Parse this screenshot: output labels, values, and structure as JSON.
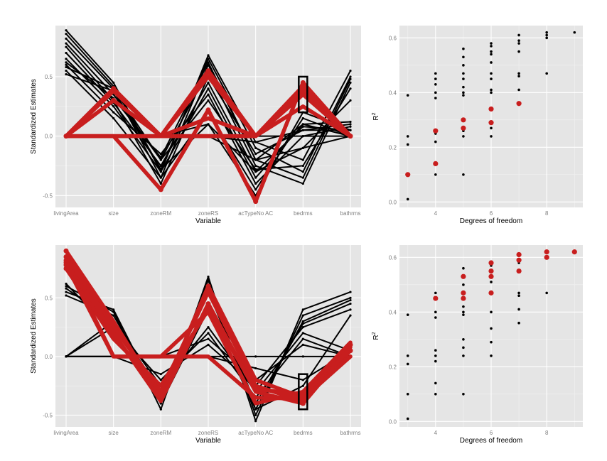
{
  "colors": {
    "panel_bg": "#e5e5e5",
    "grid_major": "#ffffff",
    "grid_minor": "#f2f2f2",
    "line_black": "#000000",
    "highlight_red": "#c81e1e",
    "tick_text": "#7f7f7f"
  },
  "chart_data": [
    {
      "type": "line",
      "id": "pc-top",
      "xlabel": "Variable",
      "ylabel": "Standardized Estimates",
      "categories": [
        "livingArea",
        "size",
        "zoneRM",
        "zoneRS",
        "acTypeNo AC",
        "bedrms",
        "bathrms"
      ],
      "yticks": [
        -0.5,
        0.0,
        0.5
      ],
      "ytick_labels": [
        "-0.5",
        "0.0",
        "0.5"
      ],
      "ylim": [
        -0.6,
        0.93
      ],
      "grid": true,
      "highlight_box": {
        "category": "bedrms",
        "ymin": 0.2,
        "ymax": 0.5
      },
      "series_black": [
        [
          0.89,
          0.45,
          -0.3,
          0.68,
          -0.05,
          -0.2,
          0.55
        ],
        [
          0.86,
          0.42,
          -0.28,
          0.65,
          -0.1,
          -0.3,
          0.5
        ],
        [
          0.82,
          0.4,
          -0.35,
          0.6,
          -0.2,
          -0.35,
          0.48
        ],
        [
          0.78,
          0.35,
          -0.2,
          0.55,
          -0.25,
          -0.4,
          0.45
        ],
        [
          0.75,
          0.3,
          -0.4,
          0.5,
          -0.15,
          0.05,
          0.1
        ],
        [
          0.7,
          0.28,
          -0.25,
          0.45,
          -0.3,
          0.08,
          0.05
        ],
        [
          0.65,
          0.25,
          -0.3,
          0.4,
          -0.35,
          0.1,
          0.12
        ],
        [
          0.6,
          0.2,
          -0.15,
          0.35,
          -0.4,
          0.0,
          0.08
        ],
        [
          0.58,
          0.4,
          -0.2,
          0.3,
          -0.28,
          -0.25,
          0.4
        ],
        [
          0.55,
          0.15,
          -0.35,
          0.2,
          -0.45,
          0.15,
          0.0
        ],
        [
          0.52,
          0.38,
          -0.28,
          0.1,
          -0.5,
          0.2,
          0.05
        ],
        [
          0.62,
          0.32,
          -0.18,
          0.62,
          -0.2,
          -0.1,
          0.3
        ],
        [
          0.0,
          0.0,
          0.0,
          0.0,
          -0.05,
          0.05,
          0.05
        ],
        [
          0.0,
          0.0,
          0.0,
          0.0,
          -0.2,
          0.1,
          0.0
        ],
        [
          0.0,
          0.0,
          0.0,
          0.0,
          0.0,
          0.0,
          0.0
        ],
        [
          0.0,
          0.0,
          0.0,
          0.1,
          -0.3,
          -0.1,
          0.0
        ]
      ],
      "series_red": [
        [
          0.0,
          0.4,
          0.0,
          0.55,
          0.0,
          0.42,
          0.0
        ],
        [
          0.0,
          0.3,
          0.0,
          0.5,
          0.0,
          0.38,
          0.0
        ],
        [
          0.0,
          0.0,
          -0.45,
          0.22,
          -0.55,
          0.45,
          0.0
        ],
        [
          0.0,
          0.38,
          0.0,
          0.0,
          0.0,
          0.4,
          0.0
        ],
        [
          0.0,
          0.0,
          0.0,
          0.0,
          0.0,
          0.35,
          0.0
        ],
        [
          0.0,
          0.0,
          0.0,
          0.15,
          0.0,
          0.25,
          0.0
        ]
      ],
      "red_points": [
        [
          0.0,
          0.0
        ],
        [
          1.0,
          0.4
        ],
        [
          1.0,
          0.3
        ],
        [
          2.0,
          -0.45
        ],
        [
          3.0,
          0.55
        ],
        [
          3.0,
          0.5
        ],
        [
          3.0,
          0.22
        ],
        [
          4.0,
          -0.55
        ],
        [
          5.0,
          0.45
        ],
        [
          5.0,
          0.42
        ],
        [
          5.0,
          0.38
        ],
        [
          6.0,
          0.0
        ]
      ]
    },
    {
      "type": "scatter",
      "id": "r2-top",
      "xlabel": "Degrees of freedom",
      "ylabel": "R2",
      "xlim": [
        2.7,
        9.3
      ],
      "ylim": [
        -0.02,
        0.645
      ],
      "xticks": [
        4,
        6,
        8
      ],
      "xtick_labels": [
        "4",
        "6",
        "8"
      ],
      "yticks": [
        0.0,
        0.2,
        0.4,
        0.6
      ],
      "ytick_labels": [
        "0.0",
        "0.2",
        "0.4",
        "0.6"
      ],
      "grid": true,
      "black_points": [
        [
          3,
          0.01
        ],
        [
          3,
          0.21
        ],
        [
          3,
          0.24
        ],
        [
          3,
          0.39
        ],
        [
          4,
          0.1
        ],
        [
          4,
          0.22
        ],
        [
          4,
          0.25
        ],
        [
          4,
          0.38
        ],
        [
          4,
          0.4
        ],
        [
          4,
          0.43
        ],
        [
          4,
          0.45
        ],
        [
          4,
          0.47
        ],
        [
          5,
          0.1
        ],
        [
          5,
          0.24
        ],
        [
          5,
          0.26
        ],
        [
          5,
          0.39
        ],
        [
          5,
          0.4
        ],
        [
          5,
          0.42
        ],
        [
          5,
          0.45
        ],
        [
          5,
          0.47
        ],
        [
          5,
          0.5
        ],
        [
          5,
          0.53
        ],
        [
          5,
          0.56
        ],
        [
          6,
          0.24
        ],
        [
          6,
          0.27
        ],
        [
          6,
          0.4
        ],
        [
          6,
          0.41
        ],
        [
          6,
          0.45
        ],
        [
          6,
          0.47
        ],
        [
          6,
          0.51
        ],
        [
          6,
          0.54
        ],
        [
          6,
          0.55
        ],
        [
          6,
          0.57
        ],
        [
          6,
          0.58
        ],
        [
          7,
          0.41
        ],
        [
          7,
          0.46
        ],
        [
          7,
          0.47
        ],
        [
          7,
          0.55
        ],
        [
          7,
          0.58
        ],
        [
          7,
          0.59
        ],
        [
          7,
          0.61
        ],
        [
          8,
          0.47
        ],
        [
          8,
          0.6
        ],
        [
          8,
          0.61
        ],
        [
          8,
          0.62
        ],
        [
          9,
          0.62
        ]
      ],
      "red_points": [
        [
          3,
          0.1
        ],
        [
          4,
          0.14
        ],
        [
          4,
          0.26
        ],
        [
          5,
          0.27
        ],
        [
          5,
          0.3
        ],
        [
          6,
          0.29
        ],
        [
          6,
          0.34
        ],
        [
          7,
          0.36
        ]
      ]
    },
    {
      "type": "line",
      "id": "pc-bottom",
      "xlabel": "Variable",
      "ylabel": "Standardized Estimates",
      "categories": [
        "livingArea",
        "size",
        "zoneRM",
        "zoneRS",
        "acTypeNo AC",
        "bedrms",
        "bathrms"
      ],
      "yticks": [
        -0.5,
        0.0,
        0.5
      ],
      "ytick_labels": [
        "-0.5",
        "0.0",
        "0.5"
      ],
      "ylim": [
        -0.6,
        0.95
      ],
      "grid": true,
      "highlight_box": {
        "category": "bedrms",
        "ymin": -0.45,
        "ymax": -0.15
      },
      "series_black": [
        [
          0.6,
          0.38,
          -0.45,
          0.68,
          -0.55,
          0.4,
          0.55
        ],
        [
          0.55,
          0.4,
          -0.4,
          0.65,
          -0.5,
          0.35,
          0.5
        ],
        [
          0.52,
          0.35,
          -0.35,
          0.6,
          -0.45,
          0.3,
          0.48
        ],
        [
          0.58,
          0.3,
          -0.3,
          0.55,
          -0.4,
          0.28,
          0.45
        ],
        [
          0.0,
          0.3,
          -0.25,
          0.25,
          -0.3,
          0.2,
          0.05
        ],
        [
          0.0,
          0.25,
          -0.2,
          0.2,
          -0.35,
          0.15,
          0.0
        ],
        [
          0.0,
          0.0,
          0.0,
          0.15,
          -0.2,
          0.1,
          0.0
        ],
        [
          0.0,
          0.0,
          0.0,
          0.0,
          -0.1,
          -0.2,
          0.05
        ],
        [
          0.0,
          0.0,
          0.0,
          0.0,
          0.0,
          0.0,
          0.0
        ],
        [
          0.0,
          0.0,
          -0.15,
          0.1,
          -0.25,
          0.25,
          0.4
        ],
        [
          0.62,
          0.2,
          -0.4,
          0.4,
          -0.45,
          -0.25,
          0.35
        ]
      ],
      "series_red": [
        [
          0.9,
          0.3,
          -0.35,
          0.6,
          -0.2,
          -0.35,
          0.1
        ],
        [
          0.85,
          0.25,
          -0.3,
          0.55,
          -0.25,
          -0.38,
          0.05
        ],
        [
          0.8,
          0.2,
          -0.38,
          0.45,
          -0.3,
          -0.4,
          0.08
        ],
        [
          0.75,
          0.15,
          -0.25,
          0.4,
          -0.28,
          -0.32,
          0.0
        ],
        [
          0.82,
          0.0,
          0.0,
          0.0,
          -0.35,
          -0.36,
          0.0
        ],
        [
          0.78,
          0.0,
          0.0,
          0.38,
          -0.4,
          -0.3,
          0.12
        ]
      ],
      "red_points": [
        [
          0.0,
          0.9
        ],
        [
          0.0,
          0.85
        ],
        [
          0.0,
          0.8
        ],
        [
          0.0,
          0.75
        ],
        [
          0.0,
          0.82
        ],
        [
          0.0,
          0.78
        ],
        [
          3.0,
          0.6
        ],
        [
          3.0,
          0.45
        ],
        [
          5.0,
          -0.35
        ],
        [
          5.0,
          -0.4
        ],
        [
          6.0,
          0.1
        ],
        [
          6.0,
          0.05
        ]
      ]
    },
    {
      "type": "scatter",
      "id": "r2-bottom",
      "xlabel": "Degrees of freedom",
      "ylabel": "R2",
      "xlim": [
        2.7,
        9.3
      ],
      "ylim": [
        -0.02,
        0.645
      ],
      "xticks": [
        4,
        6,
        8
      ],
      "xtick_labels": [
        "4",
        "6",
        "8"
      ],
      "yticks": [
        0.0,
        0.2,
        0.4,
        0.6
      ],
      "ytick_labels": [
        "0.0",
        "0.2",
        "0.4",
        "0.6"
      ],
      "grid": true,
      "black_points": [
        [
          3,
          0.01
        ],
        [
          3,
          0.1
        ],
        [
          3,
          0.21
        ],
        [
          3,
          0.24
        ],
        [
          3,
          0.39
        ],
        [
          4,
          0.1
        ],
        [
          4,
          0.14
        ],
        [
          4,
          0.22
        ],
        [
          4,
          0.24
        ],
        [
          4,
          0.26
        ],
        [
          4,
          0.38
        ],
        [
          4,
          0.4
        ],
        [
          4,
          0.45
        ],
        [
          4,
          0.47
        ],
        [
          5,
          0.1
        ],
        [
          5,
          0.24
        ],
        [
          5,
          0.27
        ],
        [
          5,
          0.3
        ],
        [
          5,
          0.39
        ],
        [
          5,
          0.4
        ],
        [
          5,
          0.42
        ],
        [
          5,
          0.45
        ],
        [
          5,
          0.47
        ],
        [
          5,
          0.5
        ],
        [
          5,
          0.53
        ],
        [
          5,
          0.56
        ],
        [
          6,
          0.24
        ],
        [
          6,
          0.29
        ],
        [
          6,
          0.34
        ],
        [
          6,
          0.4
        ],
        [
          6,
          0.47
        ],
        [
          6,
          0.51
        ],
        [
          6,
          0.55
        ],
        [
          6,
          0.57
        ],
        [
          6,
          0.58
        ],
        [
          7,
          0.36
        ],
        [
          7,
          0.41
        ],
        [
          7,
          0.46
        ],
        [
          7,
          0.47
        ],
        [
          7,
          0.58
        ],
        [
          7,
          0.61
        ],
        [
          8,
          0.47
        ],
        [
          8,
          0.62
        ]
      ],
      "red_points": [
        [
          4,
          0.45
        ],
        [
          5,
          0.45
        ],
        [
          5,
          0.47
        ],
        [
          5,
          0.53
        ],
        [
          6,
          0.47
        ],
        [
          6,
          0.53
        ],
        [
          6,
          0.55
        ],
        [
          6,
          0.58
        ],
        [
          7,
          0.55
        ],
        [
          7,
          0.59
        ],
        [
          7,
          0.61
        ],
        [
          8,
          0.6
        ],
        [
          8,
          0.62
        ],
        [
          9,
          0.62
        ]
      ]
    }
  ]
}
